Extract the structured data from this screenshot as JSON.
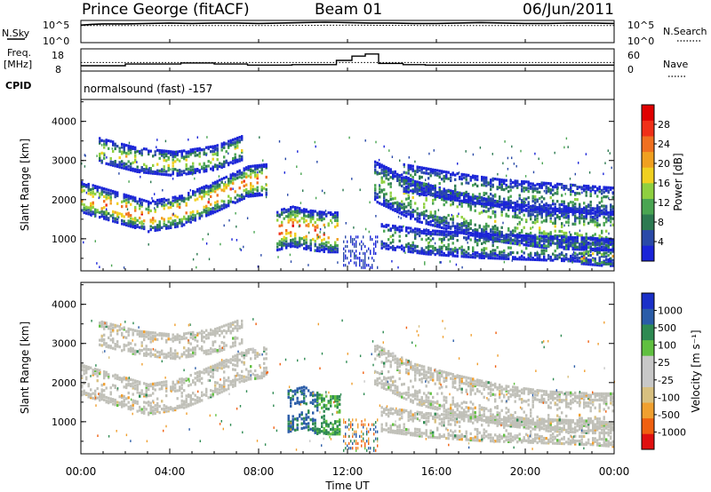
{
  "header": {
    "station": "Prince George (fitACF)",
    "beam": "Beam 01",
    "date": "06/Jun/2011"
  },
  "left_labels": {
    "nsky": "N.Sky",
    "freq_line1": "Freq.",
    "freq_line2": "[MHz]",
    "cpid": "CPID"
  },
  "right_labels": {
    "nsearch": "N.Search",
    "nave": "Nave"
  },
  "ticks": {
    "noise_top_left": "10^5",
    "noise_bottom_left": "10^0",
    "noise_top_right": "10^5",
    "noise_bottom_right": "10^0",
    "freq_top_left": "18",
    "freq_bottom_left": "8",
    "nave_top_right": "60",
    "nave_bottom_right": "0"
  },
  "cpid_text": "normalsound (fast) -157",
  "colors": {
    "power_scale": [
      "#1a24d8",
      "#2a4aa8",
      "#2d7a52",
      "#4aa552",
      "#8fd040",
      "#f0d020",
      "#f0a020",
      "#f07020",
      "#f03018",
      "#e00000"
    ],
    "velocity_scale": [
      "#e01010",
      "#f06010",
      "#f0a030",
      "#d8c080",
      "#c8c8c8",
      "#c8c8c8",
      "#60c040",
      "#2e8a52",
      "#2a5ca8",
      "#1a30c8"
    ],
    "gray_scatter": "#c0c0b8"
  },
  "chart_data": [
    {
      "type": "line",
      "name": "noise",
      "x_range": [
        0,
        24
      ],
      "ylim": [
        0,
        5
      ],
      "series": [
        {
          "name": "N.Sky",
          "x": [
            0,
            0.5,
            1,
            2,
            3,
            4,
            5,
            6,
            7,
            8,
            9,
            10,
            11,
            12,
            13,
            14,
            15,
            16,
            17,
            18,
            19,
            20,
            21,
            22,
            23,
            24
          ],
          "values": [
            4.1,
            4.3,
            4.4,
            4.4,
            4.5,
            4.6,
            4.5,
            4.6,
            4.6,
            4.5,
            4.6,
            4.7,
            4.8,
            4.7,
            4.6,
            4.6,
            4.5,
            4.5,
            4.6,
            4.7,
            4.6,
            4.5,
            4.5,
            4.6,
            4.6,
            4.5
          ]
        },
        {
          "name": "N.Search",
          "x": [
            0,
            4,
            8,
            12,
            16,
            20,
            24
          ],
          "values": [
            4.0,
            4.0,
            4.0,
            4.1,
            4.0,
            4.0,
            4.0
          ]
        }
      ]
    },
    {
      "type": "line",
      "name": "freq_nave",
      "x_range": [
        0,
        24
      ],
      "ylim_freq": [
        8,
        18
      ],
      "ylim_nave": [
        0,
        60
      ],
      "series": [
        {
          "name": "Freq.",
          "x": [
            0,
            2.0,
            2.0,
            4.5,
            4.5,
            6.0,
            6.0,
            7.5,
            7.5,
            9.5,
            9.5,
            11.5,
            11.5,
            12.2,
            12.2,
            12.8,
            12.8,
            13.4,
            13.4,
            14.5,
            14.5,
            15.5,
            15.5,
            17.0,
            17.0,
            24
          ],
          "values": [
            10.5,
            10.5,
            11.3,
            11.3,
            11.8,
            11.8,
            11.3,
            11.3,
            10.8,
            10.8,
            11.0,
            11.0,
            13.0,
            13.0,
            15.0,
            15.0,
            16.0,
            16.0,
            11.6,
            11.6,
            11.0,
            11.0,
            10.8,
            10.8,
            10.8,
            10.8
          ]
        },
        {
          "name": "Nave",
          "x": [
            0,
            24
          ],
          "values": [
            24,
            24
          ]
        }
      ]
    },
    {
      "type": "heatmap",
      "name": "power",
      "xlabel": "",
      "ylabel": "Slant Range [km]",
      "x_range": [
        0,
        24
      ],
      "ylim": [
        180,
        4560
      ],
      "y_ticks": [
        "1000",
        "2000",
        "3000",
        "4000"
      ],
      "colorbar_label": "Power [dB]",
      "colorbar_ticks": [
        "4",
        "8",
        "12",
        "16",
        "20",
        "24",
        "28"
      ],
      "bands": [
        {
          "t": [
            0.0,
            1.5,
            3.0,
            4.5,
            6.0,
            7.5,
            8.3
          ],
          "center": [
            2100,
            1850,
            1600,
            1750,
            2100,
            2500,
            2550
          ],
          "width": 380,
          "peak": 26
        },
        {
          "t": [
            0.8,
            2.5,
            4.2,
            6.0,
            7.2
          ],
          "center": [
            3300,
            3050,
            2950,
            3100,
            3350
          ],
          "width": 300,
          "peak": 18
        },
        {
          "t": [
            8.8,
            9.5,
            10.3,
            11.0,
            11.5
          ],
          "center": [
            1250,
            1350,
            1250,
            1200,
            1200
          ],
          "width": 500,
          "peak": 27
        },
        {
          "t": [
            13.2,
            15.0,
            17.0,
            19.0,
            21.0,
            23.0,
            24.0
          ],
          "center": [
            2500,
            2000,
            1700,
            1450,
            1300,
            1250,
            1250
          ],
          "width": 500,
          "peak": 15
        },
        {
          "t": [
            13.5,
            15.5,
            18.0,
            20.5,
            23.0,
            24.0
          ],
          "center": [
            1100,
            950,
            850,
            800,
            750,
            700
          ],
          "width": 300,
          "peak": 12
        },
        {
          "t": [
            14.5,
            16.5,
            19.0,
            21.5,
            24.0
          ],
          "center": [
            2600,
            2400,
            2200,
            2100,
            2000
          ],
          "width": 350,
          "peak": 11
        },
        {
          "t": [
            22.5,
            23.5,
            24.0
          ],
          "center": [
            600,
            550,
            550
          ],
          "width": 200,
          "peak": 24
        }
      ]
    },
    {
      "type": "heatmap",
      "name": "velocity",
      "xlabel": "Time UT",
      "ylabel": "Slant Range [km]",
      "x_range": [
        0,
        24
      ],
      "x_ticks": [
        "00:00",
        "04:00",
        "08:00",
        "12:00",
        "16:00",
        "20:00",
        "00:00"
      ],
      "ylim": [
        180,
        4560
      ],
      "y_ticks": [
        "1000",
        "2000",
        "3000",
        "4000"
      ],
      "colorbar_label": "Velocity [m s⁻¹]",
      "colorbar_ticks": [
        "-1000",
        "-500",
        "-100",
        "-25",
        "25",
        "100",
        "500",
        "1000"
      ],
      "bands": [
        {
          "t": [
            0.0,
            1.5,
            3.0,
            4.5,
            6.0,
            7.5,
            8.3
          ],
          "center": [
            2100,
            1850,
            1600,
            1750,
            2100,
            2500,
            2550
          ],
          "width": 380,
          "v": 0
        },
        {
          "t": [
            0.8,
            2.5,
            4.2,
            6.0,
            7.2
          ],
          "center": [
            3300,
            3050,
            2950,
            3100,
            3350
          ],
          "width": 300,
          "v": 0
        },
        {
          "t": [
            9.3,
            10.0,
            10.6
          ],
          "center": [
            1300,
            1400,
            1250
          ],
          "width": 520,
          "v": 600
        },
        {
          "t": [
            10.6,
            11.1,
            11.6
          ],
          "center": [
            1250,
            1200,
            1200
          ],
          "width": 480,
          "v": 120
        },
        {
          "t": [
            13.2,
            15.0,
            17.0,
            19.0,
            21.0,
            23.0,
            24.0
          ],
          "center": [
            2500,
            2000,
            1700,
            1450,
            1300,
            1250,
            1250
          ],
          "width": 500,
          "v": 0
        },
        {
          "t": [
            13.5,
            15.5,
            18.0,
            20.5,
            23.0,
            24.0
          ],
          "center": [
            1100,
            950,
            850,
            800,
            750,
            700
          ],
          "width": 300,
          "v": 0
        }
      ]
    }
  ]
}
